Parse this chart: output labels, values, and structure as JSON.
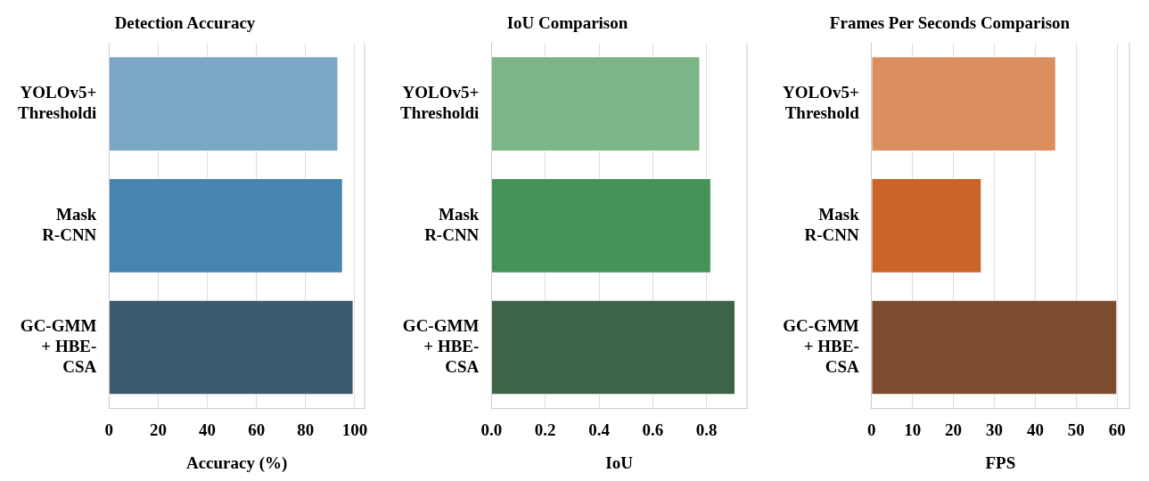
{
  "chart_data": [
    {
      "type": "bar",
      "orientation": "horizontal",
      "title": "Detection Accuracy",
      "xlabel": "Accuracy (%)",
      "categories": [
        "YOLOv5+\nThresholdi",
        "Mask\nR-CNN",
        "GC-GMM\n+ HBE-\nCSA"
      ],
      "values": [
        93.3,
        95.2,
        99.5
      ],
      "colors": [
        "#7ba7c7",
        "#4884b0",
        "#3c5a70"
      ],
      "xlim": [
        0,
        104
      ],
      "xticks": [
        0,
        20,
        40,
        60,
        80,
        100
      ],
      "grid": "x"
    },
    {
      "type": "bar",
      "orientation": "horizontal",
      "title": "IoU Comparison",
      "xlabel": "IoU",
      "categories": [
        "YOLOv5+\nThresholdi",
        "Mask\nR-CNN",
        "GC-GMM\n+ HBE-\nCSA"
      ],
      "values": [
        0.776,
        0.817,
        0.907
      ],
      "colors": [
        "#7cb586",
        "#45935a",
        "#3c6449"
      ],
      "xlim": [
        0,
        0.95
      ],
      "xticks": [
        {
          "value": 0,
          "label": "0.0"
        },
        {
          "value": 0.2,
          "label": "0.2"
        },
        {
          "value": 0.4,
          "label": "0.4"
        },
        {
          "value": 0.6,
          "label": "0.6"
        },
        {
          "value": 0.8,
          "label": "0.8"
        }
      ],
      "grid": "x"
    },
    {
      "type": "bar",
      "orientation": "horizontal",
      "title": "Frames Per Seconds Comparison",
      "xlabel": "FPS",
      "categories": [
        "YOLOv5+\nThreshold",
        "Mask\nR-CNN",
        "GC-GMM\n+ HBE-\nCSA"
      ],
      "values": [
        45.1,
        26.9,
        60
      ],
      "colors": [
        "#dc8f5e",
        "#cb6429",
        "#7e4c2e"
      ],
      "xlim": [
        0,
        63
      ],
      "xticks": [
        0,
        10,
        20,
        30,
        40,
        50,
        60
      ],
      "grid": "x"
    }
  ]
}
